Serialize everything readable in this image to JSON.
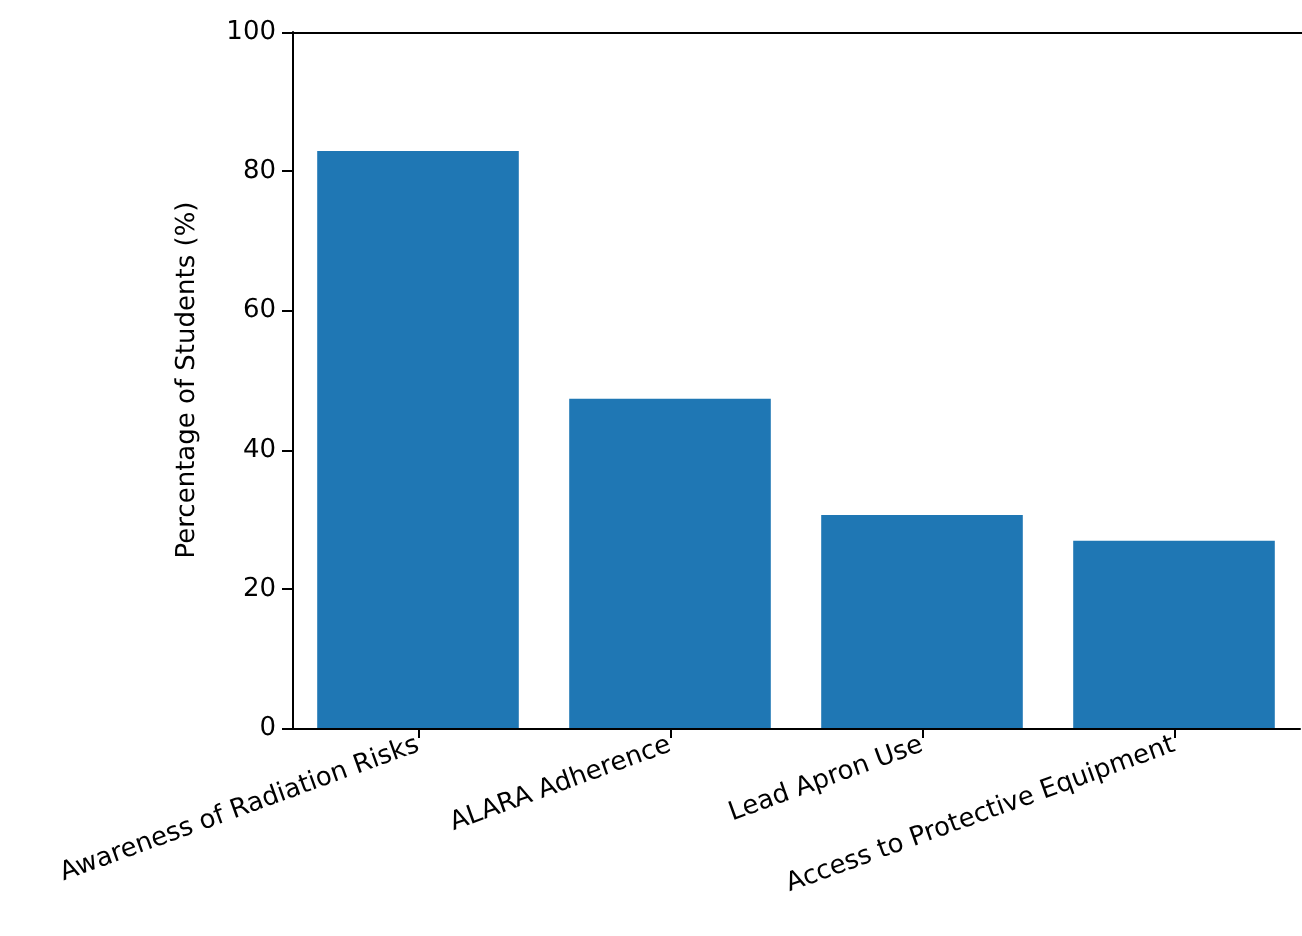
{
  "chart_data": {
    "type": "bar",
    "ylabel": "Percentage of Students (%)",
    "categories": [
      "Awareness of Radiation Risks",
      "ALARA Adherence",
      "Lead Apron Use",
      "Access to Protective Equipment"
    ],
    "values": [
      82.9,
      47.3,
      30.6,
      26.9
    ],
    "color": "#1f77b4",
    "ylim": [
      0,
      100
    ],
    "yticks": [
      0,
      20,
      40,
      60,
      80,
      100
    ],
    "grid": false
  }
}
